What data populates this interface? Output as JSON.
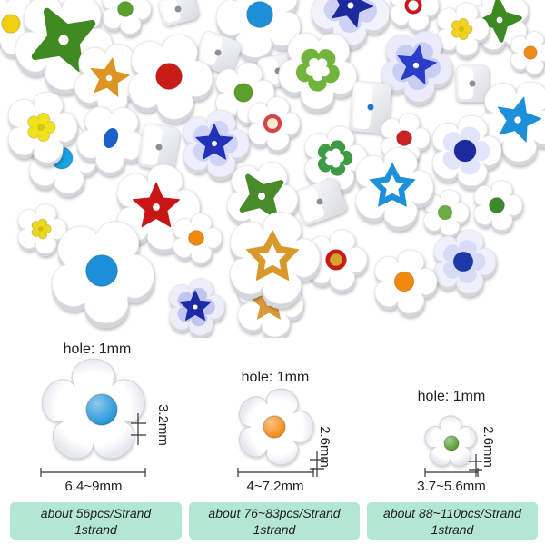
{
  "specs": [
    {
      "hole": "hole: 1mm",
      "thickness": "3.2mm",
      "diameter": "6.4~9mm",
      "count": "about 56pcs/Strand",
      "strands": "1strand"
    },
    {
      "hole": "hole: 1mm",
      "thickness": "2.6mm",
      "diameter": "4~7.2mm",
      "count": "about 76~83pcs/Strand",
      "strands": "1strand"
    },
    {
      "hole": "hole: 1mm",
      "thickness": "2.6mm",
      "diameter": "3.7~5.6mm",
      "count": "about 88~110pcs/Strand",
      "strands": "1strand"
    }
  ],
  "colors": {
    "strand_box": "#b3e6d3",
    "label_text": "#222222",
    "bead_body": "#ffffff",
    "spec_centers": [
      "#1c93d8",
      "#f4870e",
      "#4a9a28"
    ]
  }
}
